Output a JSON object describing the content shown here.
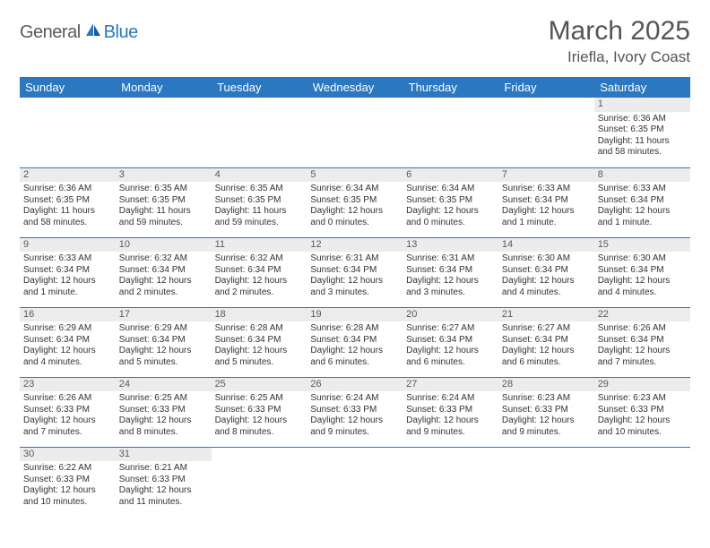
{
  "logo": {
    "general": "General",
    "blue": "Blue"
  },
  "title": "March 2025",
  "location": "Iriefla, Ivory Coast",
  "colors": {
    "header_bg": "#2b77c0",
    "header_text": "#ffffff",
    "daynum_bg": "#ececec",
    "border": "#2b77c0",
    "text": "#333333"
  },
  "weekdays": [
    "Sunday",
    "Monday",
    "Tuesday",
    "Wednesday",
    "Thursday",
    "Friday",
    "Saturday"
  ],
  "weeks": [
    [
      null,
      null,
      null,
      null,
      null,
      null,
      {
        "n": "1",
        "sunrise": "Sunrise: 6:36 AM",
        "sunset": "Sunset: 6:35 PM",
        "daylight": "Daylight: 11 hours and 58 minutes."
      }
    ],
    [
      {
        "n": "2",
        "sunrise": "Sunrise: 6:36 AM",
        "sunset": "Sunset: 6:35 PM",
        "daylight": "Daylight: 11 hours and 58 minutes."
      },
      {
        "n": "3",
        "sunrise": "Sunrise: 6:35 AM",
        "sunset": "Sunset: 6:35 PM",
        "daylight": "Daylight: 11 hours and 59 minutes."
      },
      {
        "n": "4",
        "sunrise": "Sunrise: 6:35 AM",
        "sunset": "Sunset: 6:35 PM",
        "daylight": "Daylight: 11 hours and 59 minutes."
      },
      {
        "n": "5",
        "sunrise": "Sunrise: 6:34 AM",
        "sunset": "Sunset: 6:35 PM",
        "daylight": "Daylight: 12 hours and 0 minutes."
      },
      {
        "n": "6",
        "sunrise": "Sunrise: 6:34 AM",
        "sunset": "Sunset: 6:35 PM",
        "daylight": "Daylight: 12 hours and 0 minutes."
      },
      {
        "n": "7",
        "sunrise": "Sunrise: 6:33 AM",
        "sunset": "Sunset: 6:34 PM",
        "daylight": "Daylight: 12 hours and 1 minute."
      },
      {
        "n": "8",
        "sunrise": "Sunrise: 6:33 AM",
        "sunset": "Sunset: 6:34 PM",
        "daylight": "Daylight: 12 hours and 1 minute."
      }
    ],
    [
      {
        "n": "9",
        "sunrise": "Sunrise: 6:33 AM",
        "sunset": "Sunset: 6:34 PM",
        "daylight": "Daylight: 12 hours and 1 minute."
      },
      {
        "n": "10",
        "sunrise": "Sunrise: 6:32 AM",
        "sunset": "Sunset: 6:34 PM",
        "daylight": "Daylight: 12 hours and 2 minutes."
      },
      {
        "n": "11",
        "sunrise": "Sunrise: 6:32 AM",
        "sunset": "Sunset: 6:34 PM",
        "daylight": "Daylight: 12 hours and 2 minutes."
      },
      {
        "n": "12",
        "sunrise": "Sunrise: 6:31 AM",
        "sunset": "Sunset: 6:34 PM",
        "daylight": "Daylight: 12 hours and 3 minutes."
      },
      {
        "n": "13",
        "sunrise": "Sunrise: 6:31 AM",
        "sunset": "Sunset: 6:34 PM",
        "daylight": "Daylight: 12 hours and 3 minutes."
      },
      {
        "n": "14",
        "sunrise": "Sunrise: 6:30 AM",
        "sunset": "Sunset: 6:34 PM",
        "daylight": "Daylight: 12 hours and 4 minutes."
      },
      {
        "n": "15",
        "sunrise": "Sunrise: 6:30 AM",
        "sunset": "Sunset: 6:34 PM",
        "daylight": "Daylight: 12 hours and 4 minutes."
      }
    ],
    [
      {
        "n": "16",
        "sunrise": "Sunrise: 6:29 AM",
        "sunset": "Sunset: 6:34 PM",
        "daylight": "Daylight: 12 hours and 4 minutes."
      },
      {
        "n": "17",
        "sunrise": "Sunrise: 6:29 AM",
        "sunset": "Sunset: 6:34 PM",
        "daylight": "Daylight: 12 hours and 5 minutes."
      },
      {
        "n": "18",
        "sunrise": "Sunrise: 6:28 AM",
        "sunset": "Sunset: 6:34 PM",
        "daylight": "Daylight: 12 hours and 5 minutes."
      },
      {
        "n": "19",
        "sunrise": "Sunrise: 6:28 AM",
        "sunset": "Sunset: 6:34 PM",
        "daylight": "Daylight: 12 hours and 6 minutes."
      },
      {
        "n": "20",
        "sunrise": "Sunrise: 6:27 AM",
        "sunset": "Sunset: 6:34 PM",
        "daylight": "Daylight: 12 hours and 6 minutes."
      },
      {
        "n": "21",
        "sunrise": "Sunrise: 6:27 AM",
        "sunset": "Sunset: 6:34 PM",
        "daylight": "Daylight: 12 hours and 6 minutes."
      },
      {
        "n": "22",
        "sunrise": "Sunrise: 6:26 AM",
        "sunset": "Sunset: 6:34 PM",
        "daylight": "Daylight: 12 hours and 7 minutes."
      }
    ],
    [
      {
        "n": "23",
        "sunrise": "Sunrise: 6:26 AM",
        "sunset": "Sunset: 6:33 PM",
        "daylight": "Daylight: 12 hours and 7 minutes."
      },
      {
        "n": "24",
        "sunrise": "Sunrise: 6:25 AM",
        "sunset": "Sunset: 6:33 PM",
        "daylight": "Daylight: 12 hours and 8 minutes."
      },
      {
        "n": "25",
        "sunrise": "Sunrise: 6:25 AM",
        "sunset": "Sunset: 6:33 PM",
        "daylight": "Daylight: 12 hours and 8 minutes."
      },
      {
        "n": "26",
        "sunrise": "Sunrise: 6:24 AM",
        "sunset": "Sunset: 6:33 PM",
        "daylight": "Daylight: 12 hours and 9 minutes."
      },
      {
        "n": "27",
        "sunrise": "Sunrise: 6:24 AM",
        "sunset": "Sunset: 6:33 PM",
        "daylight": "Daylight: 12 hours and 9 minutes."
      },
      {
        "n": "28",
        "sunrise": "Sunrise: 6:23 AM",
        "sunset": "Sunset: 6:33 PM",
        "daylight": "Daylight: 12 hours and 9 minutes."
      },
      {
        "n": "29",
        "sunrise": "Sunrise: 6:23 AM",
        "sunset": "Sunset: 6:33 PM",
        "daylight": "Daylight: 12 hours and 10 minutes."
      }
    ],
    [
      {
        "n": "30",
        "sunrise": "Sunrise: 6:22 AM",
        "sunset": "Sunset: 6:33 PM",
        "daylight": "Daylight: 12 hours and 10 minutes."
      },
      {
        "n": "31",
        "sunrise": "Sunrise: 6:21 AM",
        "sunset": "Sunset: 6:33 PM",
        "daylight": "Daylight: 12 hours and 11 minutes."
      },
      null,
      null,
      null,
      null,
      null
    ]
  ]
}
